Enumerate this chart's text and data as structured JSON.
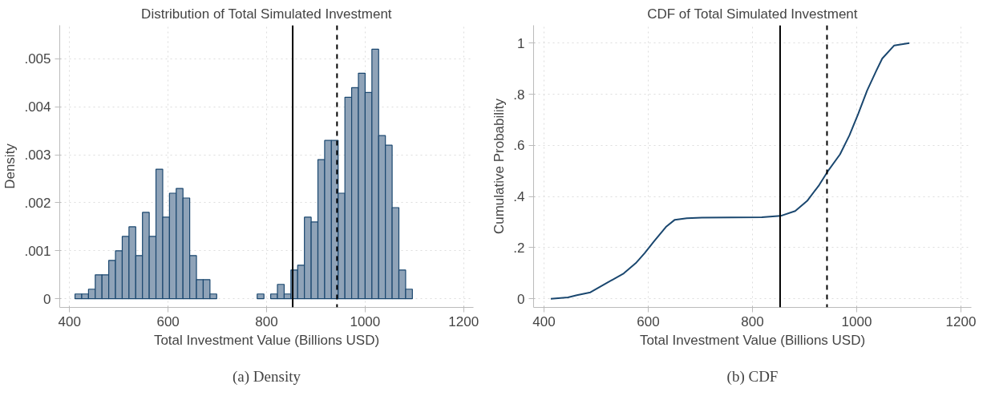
{
  "chart_data": [
    {
      "type": "histogram",
      "title": "Distribution of Total Simulated Investment",
      "xlabel": "Total Investment Value (Billions USD)",
      "ylabel": "Density",
      "color": "#8fa3b8",
      "bins": [
        411.0,
        424.7,
        438.4,
        452.1,
        465.8,
        479.5,
        493.2,
        506.9,
        520.6,
        534.3,
        548.0,
        561.7,
        575.4,
        589.1,
        602.8,
        616.5,
        630.2,
        643.9,
        657.6,
        671.3,
        685.0,
        698.7,
        712.4,
        726.1,
        739.8,
        753.5,
        767.2,
        780.9,
        794.6,
        808.3,
        822.0,
        835.7,
        849.4,
        863.1,
        876.8,
        890.5,
        904.2,
        917.9,
        931.6,
        945.3,
        959.0,
        972.7,
        986.4,
        1000.1,
        1013.8,
        1027.5,
        1041.2,
        1054.9,
        1068.6,
        1082.3,
        1096.0
      ],
      "values": [
        0.0001,
        0.0001,
        0.0002,
        0.0005,
        0.0005,
        0.0008,
        0.001,
        0.0013,
        0.0015,
        0.0009,
        0.0018,
        0.0013,
        0.0027,
        0.0017,
        0.0022,
        0.0023,
        0.0021,
        0.0009,
        0.0004,
        0.0004,
        0.0001,
        null,
        null,
        null,
        null,
        null,
        null,
        0.0001,
        null,
        0.0001,
        0.0003,
        0.0001,
        0.0006,
        0.0007,
        0.0017,
        0.0016,
        0.0029,
        0.0033,
        0.0033,
        0.0022,
        0.0042,
        0.0044,
        0.0047,
        0.0043,
        0.0052,
        0.0034,
        0.0032,
        0.0019,
        0.0006,
        0.0002
      ],
      "xlim": [
        380,
        1220
      ],
      "xticks": [
        400,
        600,
        800,
        1000,
        1200
      ],
      "ylim": [
        -0.00018,
        0.0057
      ],
      "yticks": [
        {
          "value": 0,
          "label": "0"
        },
        {
          "value": 0.001,
          "label": ".001"
        },
        {
          "value": 0.002,
          "label": ".002"
        },
        {
          "value": 0.003,
          "label": ".003"
        },
        {
          "value": 0.004,
          "label": ".004"
        },
        {
          "value": 0.005,
          "label": ".005"
        }
      ],
      "grid": true,
      "ref_lines": [
        {
          "axis": "x",
          "value": 853,
          "color": "#000000",
          "line_style": "solid"
        },
        {
          "axis": "x",
          "value": 943,
          "color": "#000000",
          "line_style": "dashed"
        }
      ],
      "annotations": [
        "(a) Density"
      ]
    },
    {
      "type": "line",
      "title": "CDF of Total Simulated Investment",
      "xlabel": "Total Investment Value (Billions USD)",
      "ylabel": "Cumulative Probability",
      "x": [
        413,
        446,
        463,
        489,
        518,
        553,
        576,
        593,
        611,
        634,
        651,
        674,
        703,
        818,
        854,
        882,
        905,
        928,
        944,
        968,
        986,
        1003,
        1020,
        1038,
        1049,
        1072,
        1101
      ],
      "series": [
        {
          "color": "#1a476f",
          "values": [
            0,
            0.005,
            0.014,
            0.025,
            0.059,
            0.099,
            0.139,
            0.178,
            0.224,
            0.281,
            0.309,
            0.315,
            0.317,
            0.319,
            0.324,
            0.343,
            0.383,
            0.445,
            0.497,
            0.565,
            0.639,
            0.724,
            0.815,
            0.894,
            0.94,
            0.991,
            1
          ]
        }
      ],
      "xlim": [
        380,
        1220
      ],
      "xticks": [
        400,
        600,
        800,
        1000,
        1200
      ],
      "ylim": [
        -0.034,
        1.07
      ],
      "yticks": [
        0,
        {
          "value": 0.2,
          "label": ".2"
        },
        {
          "value": 0.4,
          "label": ".4"
        },
        {
          "value": 0.6,
          "label": ".6"
        },
        {
          "value": 0.8,
          "label": ".8"
        },
        1
      ],
      "grid": true,
      "line_style": "solid",
      "ref_lines": [
        {
          "axis": "x",
          "value": 853,
          "color": "#000000",
          "line_style": "solid"
        },
        {
          "axis": "x",
          "value": 943,
          "color": "#000000",
          "line_style": "dashed"
        }
      ],
      "annotations": [
        "(b) CDF"
      ]
    }
  ]
}
